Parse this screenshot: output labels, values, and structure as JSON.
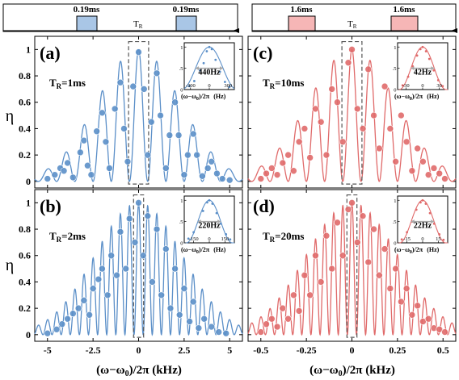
{
  "figure": {
    "colors": {
      "blue": "#5b8fc8",
      "blue_pulse": "#a9c6e6",
      "red": "#e06a6a",
      "red_pulse": "#f6b6b6",
      "inset_marker": "#a8a8a8",
      "text": "#000000"
    },
    "pulse_seq": [
      {
        "pulse_label": "0.19ms",
        "tr_label": "T",
        "tr_sub": "R"
      },
      {
        "pulse_label": "1.6ms",
        "tr_label": "T",
        "tr_sub": "R"
      }
    ],
    "y_axis_label": "η",
    "x_axis_label_left": "(ω−ω",
    "x_axis_label_sub": "0",
    "x_axis_label_left_tail": ")/2π  (kHz)",
    "x_axis_label_right": "(ω−ω",
    "x_axis_label_right_tail": ")/2π (kHz)"
  },
  "chart_data": [
    {
      "type": "scatter",
      "panel": "(a)",
      "annotation": "T",
      "annotation_sub": "R",
      "annotation_tail": "=1ms",
      "color": "blue",
      "xlim": [
        -5.7,
        5.7
      ],
      "ylim": [
        -0.05,
        1.1
      ],
      "x_ticks": [
        -5,
        -2.5,
        0,
        2.5,
        5
      ],
      "x_tick_labels": [
        "-5",
        "-2.5",
        "0",
        "2.5",
        "5"
      ],
      "y_ticks": [
        0,
        0.2,
        0.4,
        0.6,
        0.8,
        1
      ],
      "y_tick_labels": [
        "0",
        "0.2",
        "0.4",
        "0.6",
        "0.8",
        "1"
      ],
      "model": {
        "period": 1.0,
        "width": 2.3,
        "floor_width": 3.2
      },
      "series": [
        {
          "points": [
            [
              -5.0,
              0.02
            ],
            [
              -4.6,
              0.05
            ],
            [
              -4.3,
              0.1
            ],
            [
              -4.1,
              0.08
            ],
            [
              -3.9,
              0.14
            ],
            [
              -3.6,
              0.03
            ],
            [
              -3.2,
              0.22
            ],
            [
              -3.0,
              0.31
            ],
            [
              -2.8,
              0.12
            ],
            [
              -2.6,
              0.05
            ],
            [
              -2.3,
              0.38
            ],
            [
              -2.0,
              0.52
            ],
            [
              -1.8,
              0.3
            ],
            [
              -1.6,
              0.1
            ],
            [
              -1.3,
              0.55
            ],
            [
              -1.0,
              0.75
            ],
            [
              -0.8,
              0.4
            ],
            [
              -0.6,
              0.15
            ],
            [
              -0.3,
              0.72
            ],
            [
              0.0,
              0.98
            ],
            [
              0.3,
              0.7
            ],
            [
              0.5,
              0.2
            ],
            [
              0.7,
              0.45
            ],
            [
              1.0,
              0.82
            ],
            [
              1.2,
              0.5
            ],
            [
              1.5,
              0.1
            ],
            [
              1.7,
              0.35
            ],
            [
              2.0,
              0.6
            ],
            [
              2.2,
              0.35
            ],
            [
              2.5,
              0.05
            ],
            [
              2.7,
              0.2
            ],
            [
              3.0,
              0.36
            ],
            [
              3.2,
              0.2
            ],
            [
              3.5,
              0.04
            ],
            [
              3.8,
              0.1
            ],
            [
              4.0,
              0.15
            ],
            [
              4.3,
              0.06
            ],
            [
              4.6,
              0.02
            ],
            [
              5.0,
              0.01
            ]
          ]
        }
      ],
      "inset": {
        "label": "440Hz",
        "xlim": [
          -400,
          400
        ],
        "ylim": [
          0,
          1.1
        ],
        "x_ticks": [
          -300,
          0,
          300
        ],
        "x_tick_labels": [
          "-300",
          "0",
          "300"
        ],
        "y_ticks": [
          0,
          0.5,
          1
        ],
        "y_tick_labels": [
          "0",
          ".5",
          "1"
        ],
        "x_label": "(ω−ω",
        "x_label_tail": ")/2π",
        "unit": "(Hz)",
        "fwhm": 440,
        "points": [
          [
            -320,
            0.08
          ],
          [
            -240,
            0.2
          ],
          [
            -150,
            0.45
          ],
          [
            -90,
            0.62
          ],
          [
            -40,
            0.9
          ],
          [
            0,
            1.0
          ],
          [
            40,
            0.95
          ],
          [
            100,
            0.7
          ],
          [
            170,
            0.42
          ],
          [
            250,
            0.18
          ],
          [
            320,
            0.06
          ]
        ]
      }
    },
    {
      "type": "scatter",
      "panel": "(b)",
      "annotation": "T",
      "annotation_sub": "R",
      "annotation_tail": "=2ms",
      "color": "blue",
      "xlim": [
        -5.7,
        5.7
      ],
      "ylim": [
        -0.05,
        1.1
      ],
      "x_ticks": [
        -5,
        -2.5,
        0,
        2.5,
        5
      ],
      "x_tick_labels": [
        "-5",
        "-2.5",
        "0",
        "2.5",
        "5"
      ],
      "y_ticks": [
        0,
        0.2,
        0.4,
        0.6,
        0.8,
        1
      ],
      "y_tick_labels": [
        "0",
        "0.2",
        "0.4",
        "0.6",
        "0.8",
        "1"
      ],
      "model": {
        "period": 0.5,
        "width": 2.4,
        "floor_width": 3.4
      },
      "series": [
        {
          "points": [
            [
              -5.0,
              0.01
            ],
            [
              -4.5,
              0.04
            ],
            [
              -4.2,
              0.08
            ],
            [
              -3.9,
              0.12
            ],
            [
              -3.6,
              0.16
            ],
            [
              -3.3,
              0.2
            ],
            [
              -3.0,
              0.26
            ],
            [
              -2.7,
              0.15
            ],
            [
              -2.5,
              0.35
            ],
            [
              -2.2,
              0.42
            ],
            [
              -2.0,
              0.5
            ],
            [
              -1.7,
              0.3
            ],
            [
              -1.5,
              0.6
            ],
            [
              -1.2,
              0.45
            ],
            [
              -1.0,
              0.78
            ],
            [
              -0.7,
              0.5
            ],
            [
              -0.5,
              0.88
            ],
            [
              -0.2,
              0.7
            ],
            [
              0.0,
              1.0
            ],
            [
              0.25,
              0.6
            ],
            [
              0.5,
              0.9
            ],
            [
              0.75,
              0.4
            ],
            [
              1.0,
              0.8
            ],
            [
              1.25,
              0.3
            ],
            [
              1.5,
              0.65
            ],
            [
              1.75,
              0.2
            ],
            [
              2.0,
              0.5
            ],
            [
              2.25,
              0.15
            ],
            [
              2.5,
              0.35
            ],
            [
              2.8,
              0.1
            ],
            [
              3.0,
              0.25
            ],
            [
              3.3,
              0.05
            ],
            [
              3.6,
              0.12
            ],
            [
              4.0,
              0.06
            ],
            [
              4.4,
              0.02
            ],
            [
              4.8,
              0.01
            ]
          ]
        }
      ],
      "inset": {
        "label": "220Hz",
        "xlim": [
          -240,
          240
        ],
        "ylim": [
          0,
          1.1
        ],
        "x_ticks": [
          -150,
          0,
          150
        ],
        "x_tick_labels": [
          "-150",
          "0",
          "150"
        ],
        "y_ticks": [
          0,
          0.5,
          1
        ],
        "y_tick_labels": [
          "0",
          ".5",
          "1"
        ],
        "x_label": "(ω−ω",
        "x_label_tail": ")/2π",
        "unit": "(Hz)",
        "fwhm": 220,
        "points": [
          [
            -200,
            0.1
          ],
          [
            -150,
            0.25
          ],
          [
            -100,
            0.5
          ],
          [
            -60,
            0.75
          ],
          [
            -20,
            0.95
          ],
          [
            0,
            1.0
          ],
          [
            30,
            0.92
          ],
          [
            70,
            0.7
          ],
          [
            110,
            0.45
          ],
          [
            160,
            0.2
          ],
          [
            200,
            0.08
          ]
        ]
      }
    },
    {
      "type": "scatter",
      "panel": "(c)",
      "annotation": "T",
      "annotation_sub": "R",
      "annotation_tail": "=10ms",
      "color": "red",
      "xlim": [
        -0.57,
        0.57
      ],
      "ylim": [
        -0.05,
        1.1
      ],
      "x_ticks": [
        -0.5,
        -0.25,
        0,
        0.25,
        0.5
      ],
      "x_tick_labels": [
        "-0.5",
        "-0.25",
        "0",
        "0.25",
        "0.5"
      ],
      "y_ticks": [
        0,
        0.2,
        0.4,
        0.6,
        0.8,
        1
      ],
      "y_tick_labels": [
        "0",
        "0.2",
        "0.4",
        "0.6",
        "0.8",
        "1"
      ],
      "model": {
        "period": 0.1,
        "width": 0.24,
        "floor_width": 0.34
      },
      "series": [
        {
          "points": [
            [
              -0.5,
              0.02
            ],
            [
              -0.47,
              0.06
            ],
            [
              -0.44,
              0.1
            ],
            [
              -0.41,
              0.05
            ],
            [
              -0.38,
              0.14
            ],
            [
              -0.35,
              0.2
            ],
            [
              -0.32,
              0.08
            ],
            [
              -0.29,
              0.3
            ],
            [
              -0.26,
              0.4
            ],
            [
              -0.23,
              0.18
            ],
            [
              -0.2,
              0.55
            ],
            [
              -0.17,
              0.45
            ],
            [
              -0.14,
              0.2
            ],
            [
              -0.11,
              0.7
            ],
            [
              -0.08,
              0.6
            ],
            [
              -0.05,
              0.3
            ],
            [
              -0.02,
              0.9
            ],
            [
              0.0,
              1.0
            ],
            [
              0.03,
              0.55
            ],
            [
              0.06,
              0.4
            ],
            [
              0.09,
              0.85
            ],
            [
              0.12,
              0.5
            ],
            [
              0.15,
              0.25
            ],
            [
              0.18,
              0.72
            ],
            [
              0.21,
              0.4
            ],
            [
              0.24,
              0.15
            ],
            [
              0.27,
              0.5
            ],
            [
              0.3,
              0.3
            ],
            [
              0.33,
              0.08
            ],
            [
              0.36,
              0.25
            ],
            [
              0.39,
              0.15
            ],
            [
              0.42,
              0.05
            ],
            [
              0.45,
              0.1
            ],
            [
              0.48,
              0.06
            ],
            [
              0.51,
              0.02
            ]
          ]
        }
      ],
      "inset": {
        "label": "42Hz",
        "xlim": [
          -45,
          45
        ],
        "ylim": [
          0,
          1.1
        ],
        "x_ticks": [
          -30,
          0,
          30
        ],
        "x_tick_labels": [
          "-30",
          "0",
          "30"
        ],
        "y_ticks": [
          0,
          0.5,
          1
        ],
        "y_tick_labels": [
          "0",
          ".5",
          "1"
        ],
        "x_label": "(ω−ω",
        "x_label_tail": ")/2π",
        "unit": "(Hz)",
        "fwhm": 42,
        "points": [
          [
            -36,
            0.1
          ],
          [
            -26,
            0.3
          ],
          [
            -18,
            0.55
          ],
          [
            -10,
            0.8
          ],
          [
            -4,
            0.95
          ],
          [
            0,
            1.0
          ],
          [
            6,
            0.9
          ],
          [
            12,
            0.72
          ],
          [
            20,
            0.45
          ],
          [
            28,
            0.22
          ],
          [
            36,
            0.08
          ]
        ]
      }
    },
    {
      "type": "scatter",
      "panel": "(d)",
      "annotation": "T",
      "annotation_sub": "R",
      "annotation_tail": "=20ms",
      "color": "red",
      "xlim": [
        -0.57,
        0.57
      ],
      "ylim": [
        -0.05,
        1.1
      ],
      "x_ticks": [
        -0.5,
        -0.25,
        0,
        0.25,
        0.5
      ],
      "x_tick_labels": [
        "-0.5",
        "-0.25",
        "0",
        "0.25",
        "0.5"
      ],
      "y_ticks": [
        0,
        0.2,
        0.4,
        0.6,
        0.8,
        1
      ],
      "y_tick_labels": [
        "0",
        "0.2",
        "0.4",
        "0.6",
        "0.8",
        "1"
      ],
      "model": {
        "period": 0.05,
        "width": 0.25,
        "floor_width": 0.36
      },
      "series": [
        {
          "points": [
            [
              -0.5,
              0.02
            ],
            [
              -0.47,
              0.08
            ],
            [
              -0.44,
              0.12
            ],
            [
              -0.41,
              0.06
            ],
            [
              -0.38,
              0.2
            ],
            [
              -0.35,
              0.12
            ],
            [
              -0.32,
              0.3
            ],
            [
              -0.29,
              0.18
            ],
            [
              -0.26,
              0.45
            ],
            [
              -0.23,
              0.3
            ],
            [
              -0.2,
              0.6
            ],
            [
              -0.17,
              0.4
            ],
            [
              -0.14,
              0.75
            ],
            [
              -0.11,
              0.5
            ],
            [
              -0.08,
              0.85
            ],
            [
              -0.05,
              0.6
            ],
            [
              -0.02,
              0.95
            ],
            [
              0.0,
              1.0
            ],
            [
              0.03,
              0.7
            ],
            [
              0.06,
              0.9
            ],
            [
              0.09,
              0.55
            ],
            [
              0.12,
              0.8
            ],
            [
              0.15,
              0.45
            ],
            [
              0.18,
              0.65
            ],
            [
              0.21,
              0.35
            ],
            [
              0.24,
              0.5
            ],
            [
              0.27,
              0.25
            ],
            [
              0.3,
              0.35
            ],
            [
              0.33,
              0.15
            ],
            [
              0.36,
              0.22
            ],
            [
              0.39,
              0.1
            ],
            [
              0.42,
              0.12
            ],
            [
              0.45,
              0.05
            ],
            [
              0.48,
              0.04
            ],
            [
              0.51,
              0.02
            ]
          ]
        }
      ],
      "inset": {
        "label": "22Hz",
        "xlim": [
          -24,
          24
        ],
        "ylim": [
          0,
          1.1
        ],
        "x_ticks": [
          -15,
          0,
          15
        ],
        "x_tick_labels": [
          "-15",
          "0",
          "15"
        ],
        "y_ticks": [
          0,
          0.5,
          1
        ],
        "y_tick_labels": [
          "0",
          ".5",
          "1"
        ],
        "x_label": "(ω−ω",
        "x_label_tail": ")/2π",
        "unit": "(Hz)",
        "fwhm": 22,
        "points": [
          [
            -20,
            0.08
          ],
          [
            -15,
            0.25
          ],
          [
            -10,
            0.5
          ],
          [
            -6,
            0.78
          ],
          [
            -2,
            0.95
          ],
          [
            0,
            1.0
          ],
          [
            3,
            0.92
          ],
          [
            7,
            0.7
          ],
          [
            11,
            0.45
          ],
          [
            16,
            0.2
          ],
          [
            20,
            0.07
          ]
        ]
      }
    }
  ]
}
